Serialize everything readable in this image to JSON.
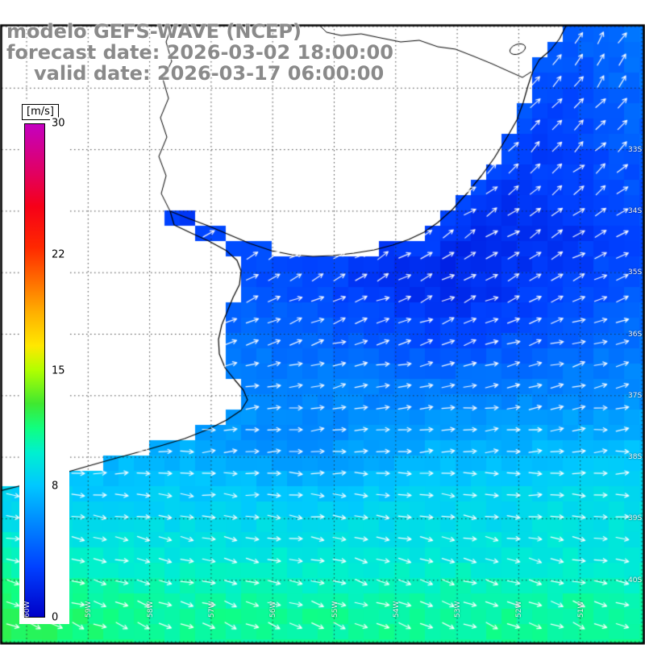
{
  "title": {
    "line1": "modelo GEFS-WAVE (NCEP)",
    "line2": "forecast date: 2026-03-02 18:00:00",
    "line3": "valid date: 2026-03-17 06:00:00"
  },
  "colorbar": {
    "unit": "[m/s]",
    "min": 0,
    "max": 30,
    "ticks": [
      {
        "value": 30,
        "label": "30"
      },
      {
        "value": 22,
        "label": "22"
      },
      {
        "value": 15,
        "label": "15"
      },
      {
        "value": 8,
        "label": "8"
      },
      {
        "value": 0,
        "label": "0"
      }
    ],
    "stops": [
      [
        0,
        "#0000c8"
      ],
      [
        3,
        "#0040ff"
      ],
      [
        6,
        "#0090ff"
      ],
      [
        8,
        "#00c8ff"
      ],
      [
        10,
        "#00f0d0"
      ],
      [
        11.5,
        "#10ff80"
      ],
      [
        13,
        "#40e830"
      ],
      [
        15,
        "#b0ff00"
      ],
      [
        16.5,
        "#ffe800"
      ],
      [
        18.5,
        "#ffb000"
      ],
      [
        20.5,
        "#ff6c00"
      ],
      [
        22.5,
        "#ff2800"
      ],
      [
        25,
        "#f60018"
      ],
      [
        27,
        "#e20060"
      ],
      [
        30,
        "#c400c0"
      ]
    ]
  },
  "map_grid": {
    "lat_labels": [
      "33S",
      "34S",
      "35S",
      "36S",
      "37S",
      "38S",
      "39S",
      "40S"
    ],
    "lon_labels": [
      "60W",
      "59W",
      "58W",
      "57W",
      "56W",
      "55W",
      "54W",
      "53W",
      "52W",
      "51W"
    ]
  },
  "colors": {
    "title_text": "#8a8a8a",
    "land": "#ffffff",
    "coastline": "#000000",
    "arrow": "#ffffff",
    "frame": "#000000",
    "grid_label_text": "#f5f5f5"
  }
}
